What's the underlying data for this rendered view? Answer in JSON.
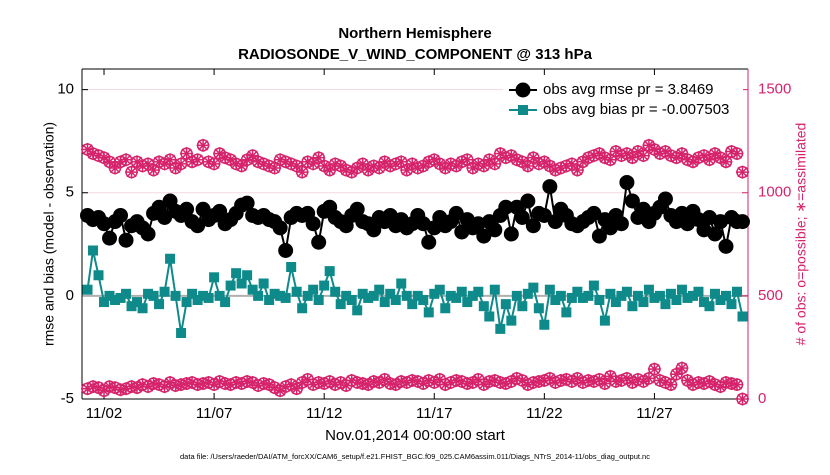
{
  "chart_data": {
    "type": "line",
    "title": "Northern Hemisphere",
    "subtitle": "RADIOSONDE_V_WIND_COMPONENT @ 313 hPa",
    "x_label": "Nov.01,2014 00:00:00 start",
    "y_label": "rmse and bias (model - observation)",
    "y2_label": "# of obs: o=possible; ∗=assimilated",
    "footnote": "data file: /Users/raeder/DAI/ATM_forcXX/CAM6_setup/f.e21.FHIST_BGC.f09_025.CAM6assim.011/Diags_NTrS_2014-11/obs_diag_output.nc",
    "xlim": [
      0,
      30.25
    ],
    "xticks": [
      {
        "value": 1,
        "label": "11/02"
      },
      {
        "value": 6,
        "label": "11/07"
      },
      {
        "value": 11,
        "label": "11/12"
      },
      {
        "value": 16,
        "label": "11/17"
      },
      {
        "value": 21,
        "label": "11/22"
      },
      {
        "value": 26,
        "label": "11/27"
      }
    ],
    "ylim": [
      -5,
      11
    ],
    "yticks": [
      -5,
      0,
      5,
      10
    ],
    "y2lim": [
      0,
      1600
    ],
    "y2ticks": [
      0,
      500,
      1000,
      1500
    ],
    "grid": true,
    "legend": "upper right",
    "x": [
      0.25,
      0.5,
      0.75,
      1,
      1.25,
      1.5,
      1.75,
      2,
      2.25,
      2.5,
      2.75,
      3,
      3.25,
      3.5,
      3.75,
      4,
      4.25,
      4.5,
      4.75,
      5,
      5.25,
      5.5,
      5.75,
      6,
      6.25,
      6.5,
      6.75,
      7,
      7.25,
      7.5,
      7.75,
      8,
      8.25,
      8.5,
      8.75,
      9,
      9.25,
      9.5,
      9.75,
      10,
      10.25,
      10.5,
      10.75,
      11,
      11.25,
      11.5,
      11.75,
      12,
      12.25,
      12.5,
      12.75,
      13,
      13.25,
      13.5,
      13.75,
      14,
      14.25,
      14.5,
      14.75,
      15,
      15.25,
      15.5,
      15.75,
      16,
      16.25,
      16.5,
      16.75,
      17,
      17.25,
      17.5,
      17.75,
      18,
      18.25,
      18.5,
      18.75,
      19,
      19.25,
      19.5,
      19.75,
      20,
      20.25,
      20.5,
      20.75,
      21,
      21.25,
      21.5,
      21.75,
      22,
      22.25,
      22.5,
      22.75,
      23,
      23.25,
      23.5,
      23.75,
      24,
      24.25,
      24.5,
      24.75,
      25,
      25.25,
      25.5,
      25.75,
      26,
      26.25,
      26.5,
      26.75,
      27,
      27.25,
      27.5,
      27.75,
      28,
      28.25,
      28.5,
      28.75,
      29,
      29.25,
      29.5,
      29.75,
      30
    ],
    "series": [
      {
        "name": "obs avg rmse pr = 3.8469",
        "color": "#000000",
        "marker": "circle",
        "axis": "y",
        "values": [
          3.9,
          3.7,
          3.8,
          3.5,
          2.8,
          3.6,
          3.9,
          2.7,
          3.4,
          3.6,
          3.3,
          3.0,
          4.0,
          4.3,
          3.8,
          4.6,
          4.1,
          3.9,
          4.2,
          3.6,
          3.4,
          4.2,
          3.7,
          3.9,
          4.1,
          3.5,
          3.7,
          4.0,
          4.4,
          4.5,
          3.9,
          3.8,
          3.9,
          3.7,
          3.6,
          3.3,
          2.2,
          3.8,
          4.0,
          3.9,
          4.0,
          3.5,
          2.6,
          4.1,
          4.3,
          3.8,
          3.6,
          3.4,
          3.9,
          4.2,
          3.6,
          3.5,
          3.2,
          3.8,
          3.6,
          3.9,
          3.4,
          3.7,
          3.3,
          3.5,
          3.9,
          3.5,
          2.6,
          3.3,
          3.8,
          3.4,
          3.6,
          4.0,
          3.1,
          3.7,
          3.3,
          3.5,
          2.9,
          3.6,
          3.2,
          3.9,
          4.3,
          3.0,
          4.3,
          3.8,
          4.6,
          3.4,
          4.0,
          3.9,
          5.3,
          3.6,
          4.2,
          3.9,
          3.5,
          3.4,
          3.6,
          3.8,
          4.0,
          2.9,
          3.7,
          3.3,
          3.9,
          3.5,
          5.5,
          4.6,
          3.8,
          4.2,
          3.6,
          4.0,
          4.3,
          4.7,
          3.9,
          3.6,
          4.0,
          3.5,
          4.1,
          3.7,
          3.2,
          3.8,
          3.0,
          3.6,
          2.4,
          3.8,
          3.6,
          3.6
        ]
      },
      {
        "name": "obs avg bias pr = -0.007503",
        "color": "#0f8a8a",
        "marker": "square",
        "axis": "y",
        "values": [
          0.3,
          2.2,
          1.0,
          -0.3,
          0.0,
          -0.2,
          -0.1,
          0.1,
          -0.5,
          -0.3,
          -0.6,
          0.1,
          0.0,
          -0.4,
          0.2,
          1.8,
          0.0,
          -1.8,
          -0.3,
          0.1,
          -0.2,
          0.0,
          -0.1,
          0.9,
          0.0,
          -0.3,
          0.5,
          1.1,
          0.6,
          1.0,
          0.3,
          0.0,
          0.6,
          -0.2,
          0.1,
          0.0,
          -0.1,
          1.4,
          0.2,
          -0.6,
          0.0,
          0.3,
          -0.2,
          0.5,
          1.2,
          0.2,
          -0.4,
          0.0,
          -0.2,
          -0.7,
          0.1,
          -0.1,
          0.0,
          0.3,
          -0.3,
          0.1,
          -0.2,
          0.6,
          0.0,
          -0.4,
          0.0,
          -0.2,
          -0.8,
          0.1,
          0.3,
          -0.6,
          0.0,
          -0.1,
          0.2,
          -0.3,
          0.0,
          0.2,
          -0.5,
          -1.0,
          0.3,
          -1.6,
          -0.4,
          -1.2,
          0.0,
          -0.5,
          0.1,
          0.4,
          -0.6,
          -1.4,
          0.3,
          -0.2,
          0.0,
          -0.8,
          -0.1,
          0.2,
          -0.1,
          0.0,
          0.5,
          -0.2,
          -1.2,
          0.1,
          -0.3,
          0.0,
          0.2,
          -0.5,
          0.0,
          -0.3,
          0.3,
          -0.1,
          0.0,
          -0.4,
          0.1,
          -0.2,
          0.3,
          -0.1,
          0.0,
          0.2,
          -0.3,
          -0.5,
          0.1,
          -0.2,
          0.0,
          -0.4,
          0.2,
          -1.0
        ]
      },
      {
        "color": "#d6246c",
        "marker": "circle-star",
        "axis": "y2",
        "values": [
          1210,
          1190,
          1180,
          1170,
          1150,
          1120,
          1150,
          1160,
          1100,
          1150,
          1130,
          1140,
          1110,
          1150,
          1140,
          1160,
          1120,
          1140,
          1190,
          1150,
          1160,
          1230,
          1150,
          1140,
          1190,
          1170,
          1160,
          1140,
          1130,
          1160,
          1180,
          1150,
          1140,
          1130,
          1120,
          1160,
          1150,
          1140,
          1130,
          1100,
          1150,
          1140,
          1170,
          1130,
          1110,
          1140,
          1130,
          1110,
          1100,
          1120,
          1140,
          1110,
          1130,
          1120,
          1150,
          1130,
          1140,
          1150,
          1110,
          1140,
          1120,
          1130,
          1150,
          1160,
          1140,
          1120,
          1140,
          1130,
          1150,
          1160,
          1120,
          1140,
          1130,
          1160,
          1140,
          1190,
          1170,
          1180,
          1160,
          1150,
          1130,
          1170,
          1140,
          1150,
          1130,
          1110,
          1120,
          1130,
          1140,
          1110,
          1150,
          1170,
          1180,
          1190,
          1170,
          1160,
          1200,
          1180,
          1190,
          1170,
          1200,
          1180,
          1230,
          1210,
          1190,
          1200,
          1180,
          1170,
          1190,
          1160,
          1150,
          1170,
          1180,
          1160,
          1190,
          1170,
          1150,
          1200,
          1190,
          1100
        ]
      },
      {
        "color": "#d6246c",
        "marker": "circle-star",
        "axis": "y2",
        "values": [
          50,
          60,
          55,
          40,
          60,
          55,
          45,
          50,
          60,
          55,
          70,
          60,
          75,
          70,
          60,
          80,
          65,
          70,
          75,
          80,
          70,
          75,
          80,
          70,
          85,
          75,
          70,
          80,
          75,
          85,
          80,
          65,
          75,
          70,
          55,
          40,
          60,
          70,
          50,
          80,
          95,
          70,
          80,
          75,
          85,
          70,
          80,
          65,
          90,
          80,
          75,
          70,
          85,
          80,
          95,
          75,
          70,
          85,
          80,
          90,
          85,
          75,
          90,
          80,
          95,
          70,
          80,
          90,
          85,
          75,
          80,
          95,
          70,
          85,
          90,
          80,
          75,
          85,
          100,
          90,
          70,
          80,
          85,
          90,
          100,
          80,
          90,
          95,
          85,
          100,
          80,
          90,
          85,
          95,
          75,
          110,
          85,
          90,
          100,
          80,
          95,
          85,
          100,
          145,
          90,
          80,
          70,
          120,
          150,
          90,
          70,
          80,
          75,
          85,
          70,
          60,
          80,
          75,
          70,
          0
        ]
      }
    ]
  }
}
